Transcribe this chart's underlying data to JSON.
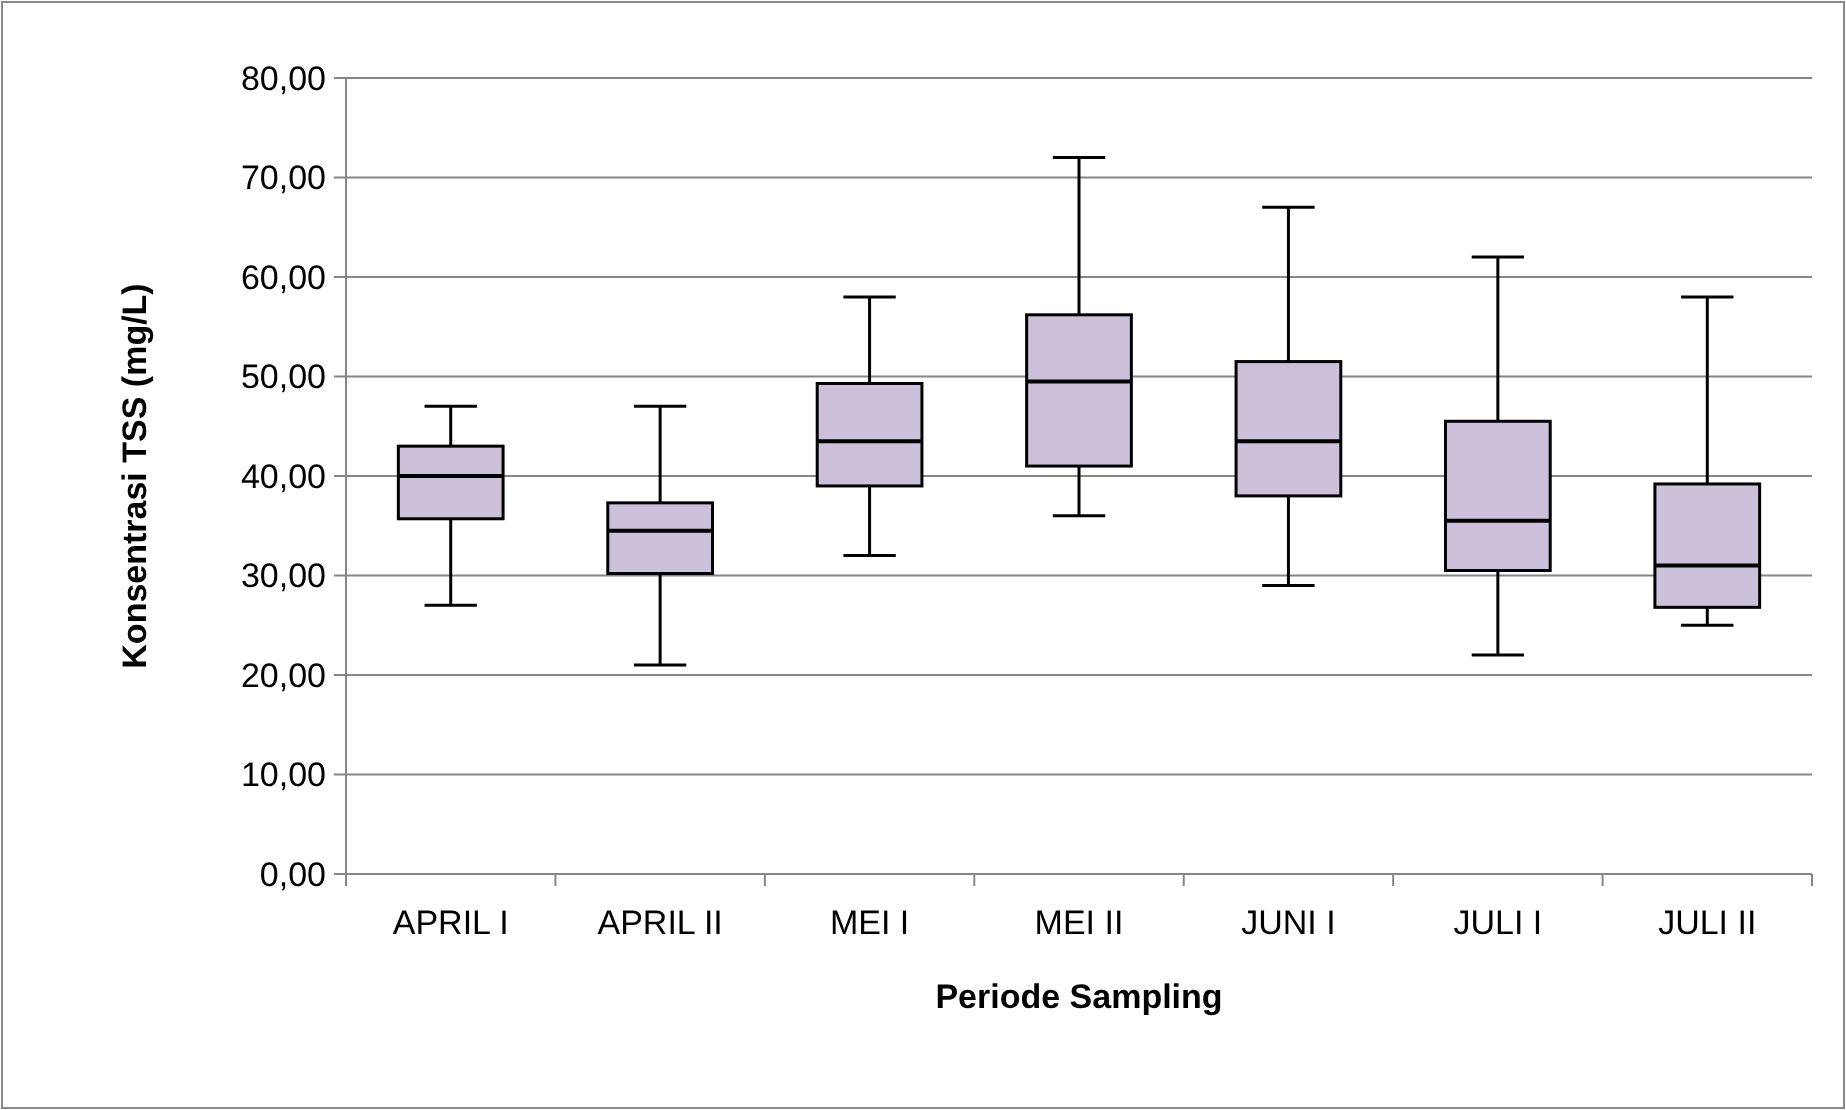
{
  "chart_data": {
    "type": "box",
    "xlabel": "Periode Sampling",
    "ylabel": "Konsentrasi TSS (mg/L)",
    "categories": [
      "APRIL I",
      "APRIL II",
      "MEI I",
      "MEI II",
      "JUNI I",
      "JULI I",
      "JULI II"
    ],
    "color": "#ccc0da",
    "boxes": [
      {
        "low": 27,
        "q1": 35.7,
        "median": 40,
        "q3": 43,
        "high": 47
      },
      {
        "low": 21,
        "q1": 30.2,
        "median": 34.5,
        "q3": 37.3,
        "high": 47
      },
      {
        "low": 32,
        "q1": 39,
        "median": 43.5,
        "q3": 49.3,
        "high": 58
      },
      {
        "low": 36,
        "q1": 41,
        "median": 49.5,
        "q3": 56.2,
        "high": 72
      },
      {
        "low": 29,
        "q1": 38,
        "median": 43.5,
        "q3": 51.5,
        "high": 67
      },
      {
        "low": 22,
        "q1": 30.5,
        "median": 35.5,
        "q3": 45.5,
        "high": 62
      },
      {
        "low": 25,
        "q1": 26.8,
        "median": 31,
        "q3": 39.2,
        "high": 58
      }
    ],
    "ylim": [
      0,
      80
    ],
    "yticks": [
      {
        "value": 0,
        "label": "0,00"
      },
      {
        "value": 10,
        "label": "10,00"
      },
      {
        "value": 20,
        "label": "20,00"
      },
      {
        "value": 30,
        "label": "30,00"
      },
      {
        "value": 40,
        "label": "40,00"
      },
      {
        "value": 50,
        "label": "50,00"
      },
      {
        "value": 60,
        "label": "60,00"
      },
      {
        "value": 70,
        "label": "70,00"
      },
      {
        "value": 80,
        "label": "80,00"
      }
    ],
    "grid": "y"
  }
}
